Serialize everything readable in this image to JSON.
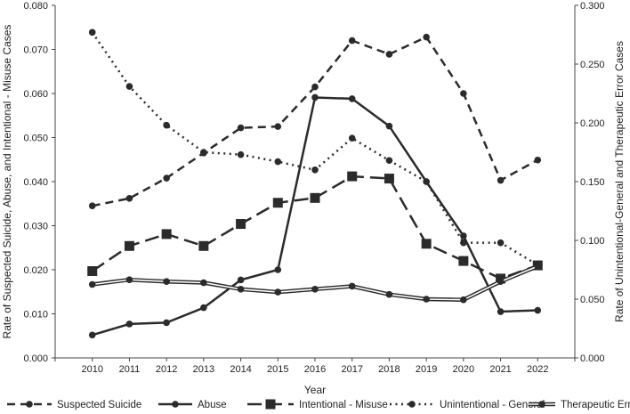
{
  "chart_data": {
    "type": "line",
    "x": [
      2010,
      2011,
      2012,
      2013,
      2014,
      2015,
      2016,
      2017,
      2018,
      2019,
      2020,
      2021,
      2022
    ],
    "xlabel": "Year",
    "ylabel_left": "Rate of Suspected Suicide, Abuse, and Intentional - Misuse Cases",
    "ylabel_right": "Rate of Unintentional-General and Therapeutic Error Cases",
    "ylim_left": [
      0,
      0.08
    ],
    "ylim_right": [
      0,
      0.3
    ],
    "yticks_left": [
      "0.000",
      "0.010",
      "0.020",
      "0.030",
      "0.040",
      "0.050",
      "0.060",
      "0.070",
      "0.080"
    ],
    "yticks_right": [
      "0.000",
      "0.050",
      "0.100",
      "0.150",
      "0.200",
      "0.250",
      "0.300"
    ],
    "grid": false,
    "legend_position": "bottom",
    "series": [
      {
        "name": "Suspected Suicide",
        "axis": "left",
        "style": "dashed",
        "marker": "circle",
        "values": [
          0.0345,
          0.0362,
          0.0408,
          0.0465,
          0.0522,
          0.0525,
          0.0615,
          0.072,
          0.0689,
          0.0728,
          0.06,
          0.0403,
          0.0449
        ]
      },
      {
        "name": "Abuse",
        "axis": "left",
        "style": "solid",
        "marker": "circle",
        "values": [
          0.0052,
          0.0077,
          0.008,
          0.0114,
          0.0177,
          0.02,
          0.0591,
          0.0588,
          0.0526,
          0.04,
          0.0277,
          0.0105,
          0.0108
        ]
      },
      {
        "name": "Intentional - Misuse",
        "axis": "left",
        "style": "longdash",
        "marker": "square",
        "values": [
          0.0197,
          0.0254,
          0.0281,
          0.0254,
          0.0304,
          0.0352,
          0.0363,
          0.0412,
          0.0407,
          0.0259,
          0.022,
          0.018,
          0.021
        ]
      },
      {
        "name": "Unintentional - General",
        "axis": "right",
        "style": "dotted",
        "marker": "circle",
        "values": [
          0.277,
          0.231,
          0.198,
          0.175,
          0.173,
          0.167,
          0.16,
          0.187,
          0.168,
          0.15,
          0.098,
          0.098,
          0.079
        ]
      },
      {
        "name": "Therapeutic Error",
        "axis": "right",
        "style": "double",
        "marker": "circle",
        "values": [
          0.0625,
          0.0665,
          0.065,
          0.064,
          0.0585,
          0.056,
          0.0585,
          0.061,
          0.054,
          0.05,
          0.0495,
          0.065,
          0.078
        ]
      }
    ]
  }
}
